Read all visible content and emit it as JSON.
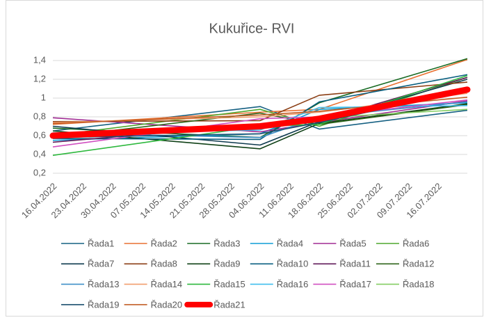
{
  "chart_data": {
    "type": "line",
    "title": "Kukuřice- RVI",
    "x": [
      0,
      7,
      9,
      14
    ],
    "xlim": [
      0,
      14
    ],
    "xticks": [
      {
        "value": 0,
        "label": "16.04.2022"
      },
      {
        "value": 1,
        "label": "23.04.2022"
      },
      {
        "value": 2,
        "label": "30.04.2022"
      },
      {
        "value": 3,
        "label": "07.05.2022"
      },
      {
        "value": 4,
        "label": "14.05.2022"
      },
      {
        "value": 5,
        "label": "21.05.2022"
      },
      {
        "value": 6,
        "label": "28.05.2022"
      },
      {
        "value": 7,
        "label": "04.06.2022"
      },
      {
        "value": 8,
        "label": "11.06.2022"
      },
      {
        "value": 9,
        "label": "18.06.2022"
      },
      {
        "value": 10,
        "label": "25.06.2022"
      },
      {
        "value": 11,
        "label": "02.07.2022"
      },
      {
        "value": 12,
        "label": "09.07.2022"
      },
      {
        "value": 13,
        "label": "16.07.2022"
      }
    ],
    "ylim": [
      0.2,
      1.4
    ],
    "yticks": [
      {
        "value": 0.2,
        "label": "0,2"
      },
      {
        "value": 0.4,
        "label": "0,4"
      },
      {
        "value": 0.6,
        "label": "0,6"
      },
      {
        "value": 0.8,
        "label": "0,8"
      },
      1,
      {
        "value": 1.2,
        "label": "1,2"
      },
      {
        "value": 1.4,
        "label": "1,4"
      }
    ],
    "grid": true,
    "series": [
      {
        "name": "Řada1",
        "color": "#156082",
        "values": [
          0.65,
          0.91,
          0.67,
          0.87
        ]
      },
      {
        "name": "Řada2",
        "color": "#E97132",
        "values": [
          0.72,
          0.85,
          0.88,
          1.41
        ]
      },
      {
        "name": "Řada3",
        "color": "#196B24",
        "values": [
          0.68,
          0.58,
          0.95,
          1.42
        ]
      },
      {
        "name": "Řada4",
        "color": "#0F9ED5",
        "values": [
          0.55,
          0.62,
          0.88,
          0.95
        ]
      },
      {
        "name": "Řada5",
        "color": "#A02B93",
        "values": [
          0.79,
          0.64,
          0.74,
          0.97
        ]
      },
      {
        "name": "Řada6",
        "color": "#4EA72E",
        "values": [
          0.6,
          0.88,
          0.7,
          1.22
        ]
      },
      {
        "name": "Řada7",
        "color": "#0D3A4E",
        "values": [
          0.7,
          0.5,
          0.75,
          1.2
        ]
      },
      {
        "name": "Řada8",
        "color": "#8B3E14",
        "values": [
          0.75,
          0.76,
          1.03,
          1.17
        ]
      },
      {
        "name": "Řada9",
        "color": "#0F4016",
        "values": [
          0.65,
          0.46,
          0.73,
          0.94
        ]
      },
      {
        "name": "Řada10",
        "color": "#095F80",
        "values": [
          0.57,
          0.56,
          0.96,
          1.25
        ]
      },
      {
        "name": "Řada11",
        "color": "#601A58",
        "values": [
          0.53,
          0.72,
          0.76,
          1.22
        ]
      },
      {
        "name": "Řada12",
        "color": "#2F641B",
        "values": [
          0.58,
          0.84,
          0.72,
          0.93
        ]
      },
      {
        "name": "Řada13",
        "color": "#3E8FC8",
        "values": [
          0.63,
          0.58,
          0.8,
          0.96
        ]
      },
      {
        "name": "Řada14",
        "color": "#F19E6E",
        "values": [
          0.74,
          0.8,
          0.85,
          1.05
        ]
      },
      {
        "name": "Řada15",
        "color": "#2DB83D",
        "values": [
          0.39,
          0.7,
          0.72,
          1.24
        ]
      },
      {
        "name": "Řada16",
        "color": "#3FBEED",
        "values": [
          0.62,
          0.66,
          0.9,
          0.92
        ]
      },
      {
        "name": "Řada17",
        "color": "#D04FC0",
        "values": [
          0.48,
          0.78,
          0.8,
          0.98
        ]
      },
      {
        "name": "Řada18",
        "color": "#84CE63",
        "values": [
          0.61,
          0.7,
          0.79,
          0.88
        ]
      },
      {
        "name": "Řada19",
        "color": "#1A4F6E",
        "values": [
          0.58,
          0.62,
          0.74,
          1.08
        ]
      },
      {
        "name": "Řada20",
        "color": "#C25E26",
        "values": [
          0.73,
          0.82,
          0.86,
          1.01
        ]
      },
      {
        "name": "Řada21",
        "color": "#FF0000",
        "values": [
          0.6,
          0.7,
          0.78,
          1.09
        ]
      }
    ]
  }
}
